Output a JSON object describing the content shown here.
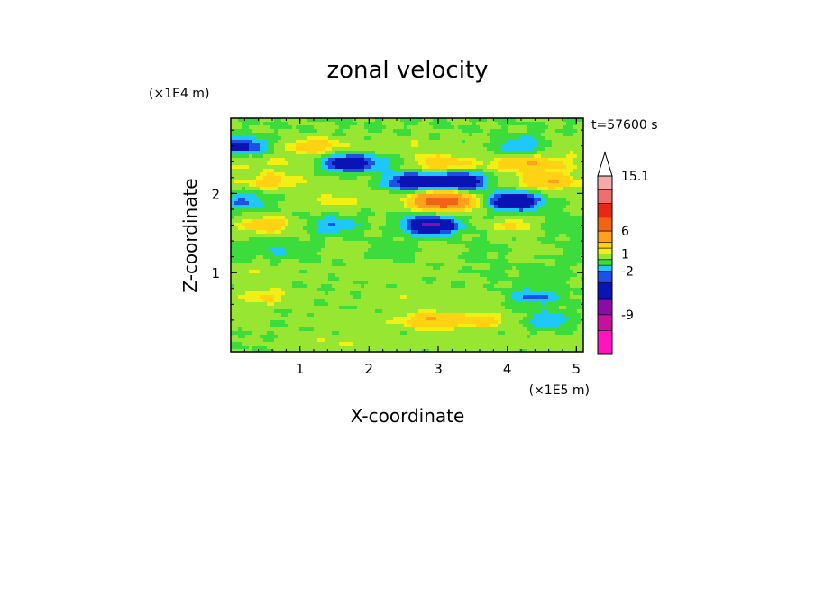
{
  "chart_data": {
    "type": "heatmap",
    "title": "zonal velocity",
    "xlabel": "X-coordinate",
    "ylabel": "Z-coordinate",
    "x_unit": "(×1E5 m)",
    "y_unit": "(×1E4 m)",
    "time_label": "t=57600 s",
    "xlim": [
      0,
      5.1
    ],
    "ylim": [
      0,
      2.95
    ],
    "x_ticks": [
      "1",
      "2",
      "3",
      "4",
      "5"
    ],
    "x_tick_values": [
      1,
      2,
      3,
      4,
      5
    ],
    "y_ticks": [
      "1",
      "2"
    ],
    "y_tick_values": [
      1,
      2
    ],
    "colorbar": {
      "levels": [
        -16,
        -12,
        -9,
        -6,
        -3,
        -2,
        -1,
        0,
        1,
        1.5,
        3,
        6,
        9,
        12,
        15.1
      ],
      "colors": [
        "#ff14be",
        "#c8109e",
        "#8c0aa8",
        "#0a14b4",
        "#1e50e6",
        "#1ec8ff",
        "#3cdc3c",
        "#96e632",
        "#f0f014",
        "#ffd214",
        "#ffa01e",
        "#f06414",
        "#e62814",
        "#f06e6e",
        "#f5aaaa"
      ],
      "tick_labels": [
        "15.1",
        "6",
        "1",
        "-2",
        "-9"
      ],
      "tick_values": [
        15.1,
        6,
        1,
        -2,
        -9
      ],
      "extend_top": true
    },
    "bands": [
      {
        "z": 2.6,
        "base": 0.4,
        "cells": [
          [
            0.15,
            -4
          ],
          [
            1.2,
            2
          ],
          [
            2.6,
            0.5
          ],
          [
            4.2,
            -2.5
          ],
          [
            4.9,
            0.5
          ]
        ]
      },
      {
        "z": 2.38,
        "base": 1.0,
        "cells": [
          [
            1.7,
            -6
          ],
          [
            2.3,
            -1.5
          ],
          [
            3.0,
            1.5
          ],
          [
            4.3,
            2
          ]
        ]
      },
      {
        "z": 2.15,
        "base": 0.5,
        "cells": [
          [
            0.6,
            1.5
          ],
          [
            2.6,
            -5
          ],
          [
            3.3,
            -6
          ],
          [
            4.6,
            2.5
          ]
        ]
      },
      {
        "z": 1.9,
        "base": 0.3,
        "cells": [
          [
            0.2,
            -2.5
          ],
          [
            1.5,
            1
          ],
          [
            3.0,
            6
          ],
          [
            3.2,
            3
          ],
          [
            4.1,
            -6
          ]
        ]
      },
      {
        "z": 1.6,
        "base": 0.4,
        "cells": [
          [
            0.5,
            2
          ],
          [
            1.5,
            -2.5
          ],
          [
            2.9,
            -7
          ],
          [
            4.2,
            1.5
          ],
          [
            4.7,
            -1.5
          ]
        ]
      },
      {
        "z": 1.3,
        "base": -0.5,
        "cells": [
          [
            0.7,
            -0.5
          ],
          [
            1.6,
            1
          ],
          [
            3.0,
            1
          ],
          [
            4.3,
            1.2
          ]
        ]
      },
      {
        "z": 1.0,
        "base": 0.3,
        "cells": [
          [
            0.4,
            0.5
          ],
          [
            2.2,
            0.4
          ],
          [
            3.8,
            -0.5
          ],
          [
            4.6,
            -1.0
          ]
        ]
      },
      {
        "z": 0.7,
        "base": 0.2,
        "cells": [
          [
            0.5,
            1.5
          ],
          [
            2.5,
            0.5
          ],
          [
            3.6,
            0.5
          ],
          [
            4.4,
            -2.5
          ]
        ]
      },
      {
        "z": 0.4,
        "base": 0.6,
        "cells": [
          [
            0.8,
            -0.5
          ],
          [
            2.9,
            2.5
          ],
          [
            3.6,
            1.5
          ],
          [
            4.6,
            -2.5
          ]
        ]
      },
      {
        "z": 0.1,
        "base": 0.5,
        "cells": [
          [
            0.3,
            -0.5
          ],
          [
            1.5,
            0.5
          ],
          [
            3.5,
            0.3
          ],
          [
            4.8,
            0.2
          ]
        ]
      }
    ]
  }
}
